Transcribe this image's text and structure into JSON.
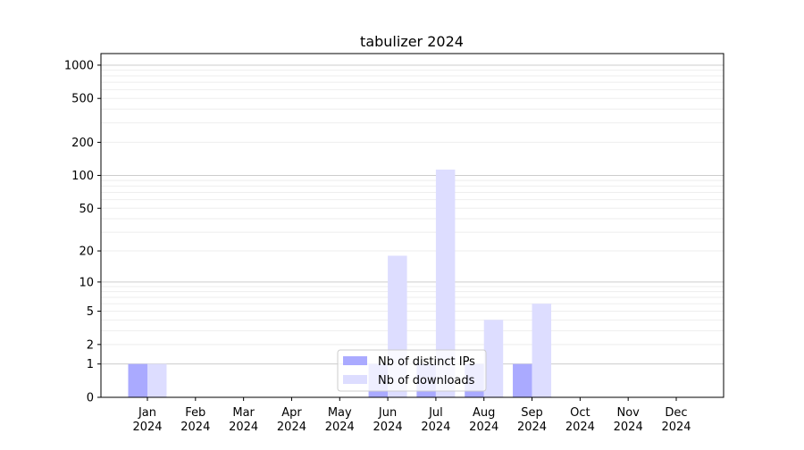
{
  "chart_data": {
    "type": "bar",
    "title": "tabulizer 2024",
    "xlabel": "",
    "ylabel": "",
    "yscale": "log(1+y)",
    "ylim": [
      0,
      1200
    ],
    "yticks": [
      0,
      1,
      2,
      5,
      10,
      20,
      50,
      100,
      200,
      500,
      1000
    ],
    "grid": true,
    "legend_position": "lower-center",
    "categories": [
      "Jan\n2024",
      "Feb\n2024",
      "Mar\n2024",
      "Apr\n2024",
      "May\n2024",
      "Jun\n2024",
      "Jul\n2024",
      "Aug\n2024",
      "Sep\n2024",
      "Oct\n2024",
      "Nov\n2024",
      "Dec\n2024"
    ],
    "series": [
      {
        "name": "Nb of distinct IPs",
        "color": "#aaaaff",
        "values": [
          1,
          0,
          0,
          0,
          0,
          1,
          1,
          1,
          1,
          0,
          0,
          0
        ]
      },
      {
        "name": "Nb of downloads",
        "color": "#ddddff",
        "values": [
          1,
          0,
          0,
          0,
          0,
          18,
          113,
          4,
          6,
          0,
          0,
          0
        ]
      }
    ]
  }
}
